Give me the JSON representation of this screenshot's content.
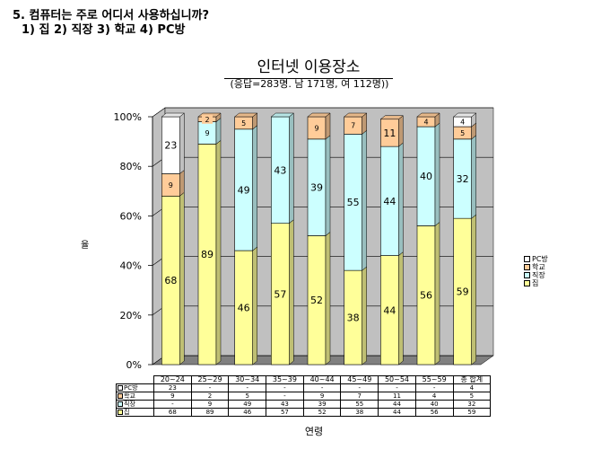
{
  "question": {
    "title": "5. 컴퓨터는 주로 어디서 사용하십니까?",
    "options": "1) 집      2) 직장    3) 학교   4) PC방"
  },
  "chart_data": {
    "type": "bar",
    "stacked": true,
    "percent": true,
    "title": "인터넷 이용장소",
    "subtitle": "(응답=283명.  남 171명, 여 112명))",
    "xlabel": "연령",
    "ylabel": "율",
    "ylim": [
      0,
      100
    ],
    "yticks": [
      "0%",
      "20%",
      "40%",
      "60%",
      "80%",
      "100%"
    ],
    "grid": true,
    "legend_position": "right",
    "categories": [
      "20~24",
      "25~29",
      "30~34",
      "35~39",
      "40~44",
      "45~49",
      "50~54",
      "55~59",
      "총 합계"
    ],
    "series": [
      {
        "name": "집",
        "color": "#ffff99",
        "values": [
          68,
          89,
          46,
          57,
          52,
          38,
          44,
          56,
          59
        ]
      },
      {
        "name": "직장",
        "color": "#ccffff",
        "values": [
          null,
          9,
          49,
          43,
          39,
          55,
          44,
          40,
          32
        ]
      },
      {
        "name": "학교",
        "color": "#ffcc99",
        "values": [
          9,
          2,
          5,
          null,
          9,
          7,
          11,
          4,
          5
        ]
      },
      {
        "name": "PC방",
        "color": "#ffffff",
        "values": [
          23,
          null,
          null,
          null,
          null,
          null,
          null,
          null,
          4
        ]
      }
    ],
    "table_rows": [
      {
        "name": "PC방",
        "color": "#ffffff",
        "cells": [
          "23",
          "-",
          "-",
          "-",
          "-",
          "-",
          "-",
          "-",
          "4"
        ]
      },
      {
        "name": "학교",
        "color": "#ffcc99",
        "cells": [
          "9",
          "2",
          "5",
          "-",
          "9",
          "7",
          "11",
          "4",
          "5"
        ]
      },
      {
        "name": "직장",
        "color": "#ccffff",
        "cells": [
          "-",
          "9",
          "49",
          "43",
          "39",
          "55",
          "44",
          "40",
          "32"
        ]
      },
      {
        "name": "집",
        "color": "#ffff99",
        "cells": [
          "68",
          "89",
          "46",
          "57",
          "52",
          "38",
          "44",
          "56",
          "59"
        ]
      }
    ]
  }
}
